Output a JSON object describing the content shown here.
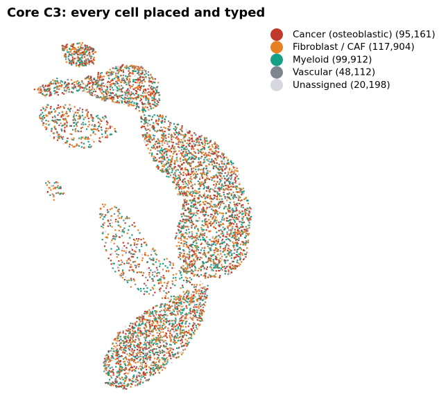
{
  "chart_data": {
    "type": "scatter",
    "title": "Core C3: every cell placed and typed",
    "series": [
      {
        "name": "Cancer (osteoblastic) (95,161)",
        "color": "#c0392b"
      },
      {
        "name": "Fibroblast / CAF (117,904)",
        "color": "#e67e22"
      },
      {
        "name": "Myeloid (99,912)",
        "color": "#16a085"
      },
      {
        "name": "Vascular (48,112)",
        "color": "#7f8590"
      },
      {
        "name": "Unassigned (20,198)",
        "color": "#d5d8dc"
      }
    ]
  }
}
